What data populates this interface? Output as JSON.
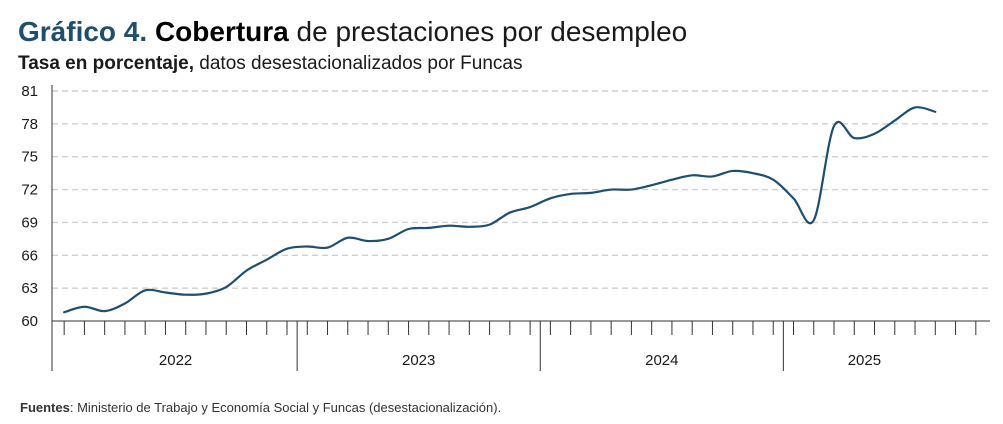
{
  "header": {
    "label": "Gráfico 4.",
    "title_bold": "Cobertura",
    "title_rest": "de prestaciones por desempleo",
    "subtitle_bold": "Tasa en porcentaje,",
    "subtitle_rest": "datos desestacionalizados por Funcas"
  },
  "footer": {
    "source_label": "Fuentes",
    "source_text": ": Ministerio de Trabajo y Economía Social y Funcas (desestacionalización)."
  },
  "colors": {
    "line": "#1f4e6e",
    "grid": "#cfcfcf",
    "axis": "#333333"
  },
  "chart_data": {
    "type": "line",
    "title": "Cobertura de prestaciones por desempleo",
    "subtitle": "Tasa en porcentaje, datos desestacionalizados por Funcas",
    "xlabel": "",
    "ylabel": "",
    "ylim": [
      60,
      81
    ],
    "y_ticks": [
      60,
      63,
      66,
      69,
      72,
      75,
      78,
      81
    ],
    "grid": true,
    "legend": "none",
    "x_period_labels": [
      "2022",
      "2023",
      "2024",
      "2025"
    ],
    "x": [
      "2022-01",
      "2022-02",
      "2022-03",
      "2022-04",
      "2022-05",
      "2022-06",
      "2022-07",
      "2022-08",
      "2022-09",
      "2022-10",
      "2022-11",
      "2022-12",
      "2023-01",
      "2023-02",
      "2023-03",
      "2023-04",
      "2023-05",
      "2023-06",
      "2023-07",
      "2023-08",
      "2023-09",
      "2023-10",
      "2023-11",
      "2023-12",
      "2024-01",
      "2024-02",
      "2024-03",
      "2024-04",
      "2024-05",
      "2024-06",
      "2024-07",
      "2024-08",
      "2024-09",
      "2024-10",
      "2024-11",
      "2024-12",
      "2025-01",
      "2025-02",
      "2025-03",
      "2025-04",
      "2025-05",
      "2025-06",
      "2025-07",
      "2025-08"
    ],
    "series": [
      {
        "values": [
          60.8,
          61.3,
          60.9,
          61.6,
          62.8,
          62.6,
          62.4,
          62.5,
          63.1,
          64.6,
          65.6,
          66.6,
          66.8,
          66.7,
          67.6,
          67.3,
          67.5,
          68.4,
          68.5,
          68.7,
          68.6,
          68.8,
          69.9,
          70.4,
          71.2,
          71.6,
          71.7,
          72.0,
          72.0,
          72.4,
          72.9,
          73.3,
          73.2,
          73.7,
          73.5,
          72.9,
          71.2,
          69.2,
          77.8,
          76.7,
          77.1,
          78.3,
          79.5,
          79.1
        ]
      }
    ]
  }
}
